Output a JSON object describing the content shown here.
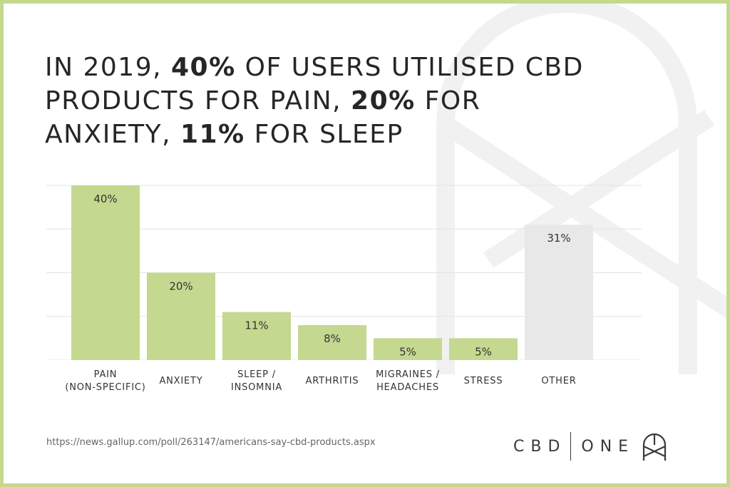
{
  "title": {
    "parts": [
      {
        "text": "IN 2019, ",
        "bold": false
      },
      {
        "text": "40%",
        "bold": true
      },
      {
        "text": " OF USERS UTILISED CBD PRODUCTS FOR PAIN, ",
        "bold": false
      },
      {
        "text": "20%",
        "bold": true
      },
      {
        "text": " FOR ANXIETY, ",
        "bold": false
      },
      {
        "text": "11%",
        "bold": true
      },
      {
        "text": " FOR SLEEP",
        "bold": false
      }
    ]
  },
  "chart_data": {
    "type": "bar",
    "title": "IN 2019, 40% OF USERS UTILISED CBD PRODUCTS FOR PAIN, 20% FOR ANXIETY, 11% FOR SLEEP",
    "categories": [
      [
        "PAIN",
        "(NON-SPECIFIC)"
      ],
      [
        "ANXIETY"
      ],
      [
        "SLEEP /",
        "INSOMNIA"
      ],
      [
        "ARTHRITIS"
      ],
      [
        "MIGRAINES /",
        "HEADACHES"
      ],
      [
        "STRESS"
      ],
      [
        "OTHER"
      ]
    ],
    "values": [
      40,
      20,
      11,
      8,
      5,
      5,
      31
    ],
    "data_labels": [
      "40%",
      "20%",
      "11%",
      "8%",
      "5%",
      "5%",
      "31%"
    ],
    "bar_colors": [
      "#c5d88f",
      "#c5d88f",
      "#c5d88f",
      "#c5d88f",
      "#c5d88f",
      "#c5d88f",
      "#e8e8e8"
    ],
    "ylim": [
      0,
      40
    ],
    "grid": true,
    "xlabel": "",
    "ylabel": ""
  },
  "source": "https://news.gallup.com/poll/263147/americans-say-cbd-products.aspx",
  "logo": {
    "left": "CBD",
    "right": "ONE",
    "icon": "cbd-one-logo-icon"
  },
  "colors": {
    "accent": "#c5d88f",
    "other_bar": "#e8e8e8",
    "text": "#262626",
    "grid": "#e3e3e3"
  }
}
